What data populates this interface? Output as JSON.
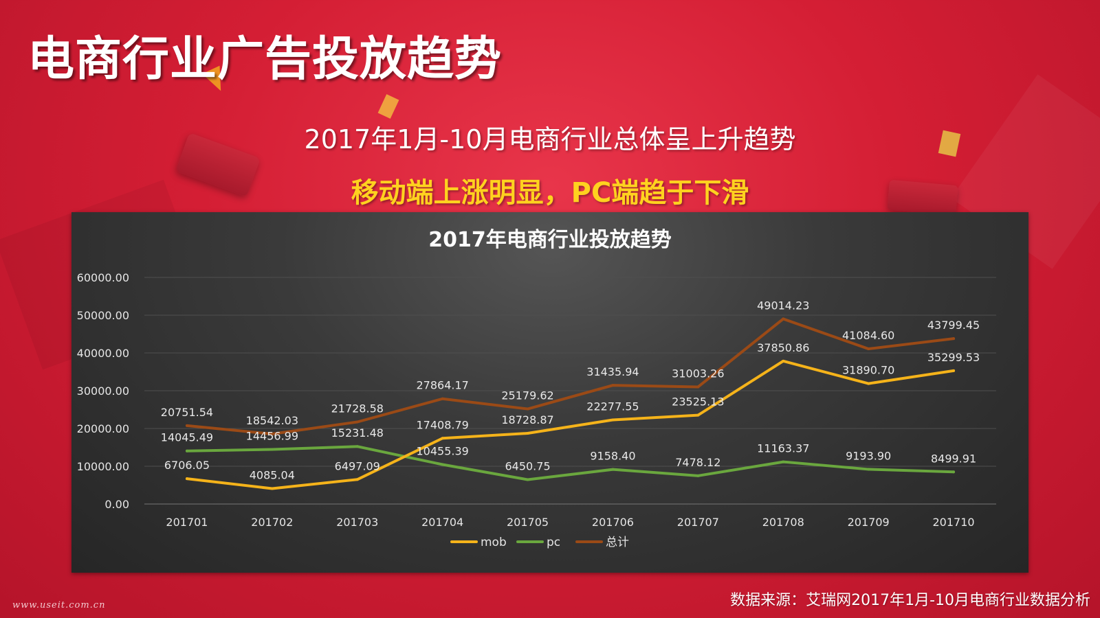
{
  "page": {
    "title": "电商行业广告投放趋势",
    "subtitle1": "2017年1月-10月电商行业总体呈上升趋势",
    "subtitle2": "移动端上涨明显，PC端趋于下滑",
    "source": "数据来源：艾瑞网2017年1月-10月电商行业数据分析",
    "watermark": "www.useit.com.cn"
  },
  "chart_data": {
    "type": "line",
    "title": "2017年电商行业投放趋势",
    "xlabel": "",
    "ylabel": "",
    "ylim": [
      0,
      60000
    ],
    "y_ticks": [
      "0.00",
      "10000.00",
      "20000.00",
      "30000.00",
      "40000.00",
      "50000.00",
      "60000.00"
    ],
    "categories": [
      "201701",
      "201702",
      "201703",
      "201704",
      "201705",
      "201706",
      "201707",
      "201708",
      "201709",
      "201710"
    ],
    "grid": true,
    "legend_position": "bottom",
    "series": [
      {
        "name": "mob",
        "color": "#f5b31a",
        "values": [
          6706.05,
          4085.04,
          6497.09,
          17408.79,
          18728.87,
          22277.55,
          23525.13,
          37850.86,
          31890.7,
          35299.53
        ],
        "labels": [
          "6706.05",
          "4085.04",
          "6497.09",
          "17408.79",
          "18728.87",
          "22277.55",
          "23525.13",
          "37850.86",
          "31890.70",
          "35299.53"
        ]
      },
      {
        "name": "pc",
        "color": "#6aa73e",
        "values": [
          14045.49,
          14456.99,
          15231.48,
          10455.39,
          6450.75,
          9158.4,
          7478.12,
          11163.37,
          9193.9,
          8499.91
        ],
        "labels": [
          "14045.49",
          "14456.99",
          "15231.48",
          "10455.39",
          "6450.75",
          "9158.40",
          "7478.12",
          "11163.37",
          "9193.90",
          "8499.91"
        ]
      },
      {
        "name": "总计",
        "color": "#9b4a16",
        "values": [
          20751.54,
          18542.03,
          21728.58,
          27864.17,
          25179.62,
          31435.94,
          31003.26,
          49014.23,
          41084.6,
          43799.45
        ],
        "labels": [
          "20751.54",
          "18542.03",
          "21728.58",
          "27864.17",
          "25179.62",
          "31435.94",
          "31003.26",
          "49014.23",
          "41084.60",
          "43799.45"
        ]
      }
    ]
  }
}
